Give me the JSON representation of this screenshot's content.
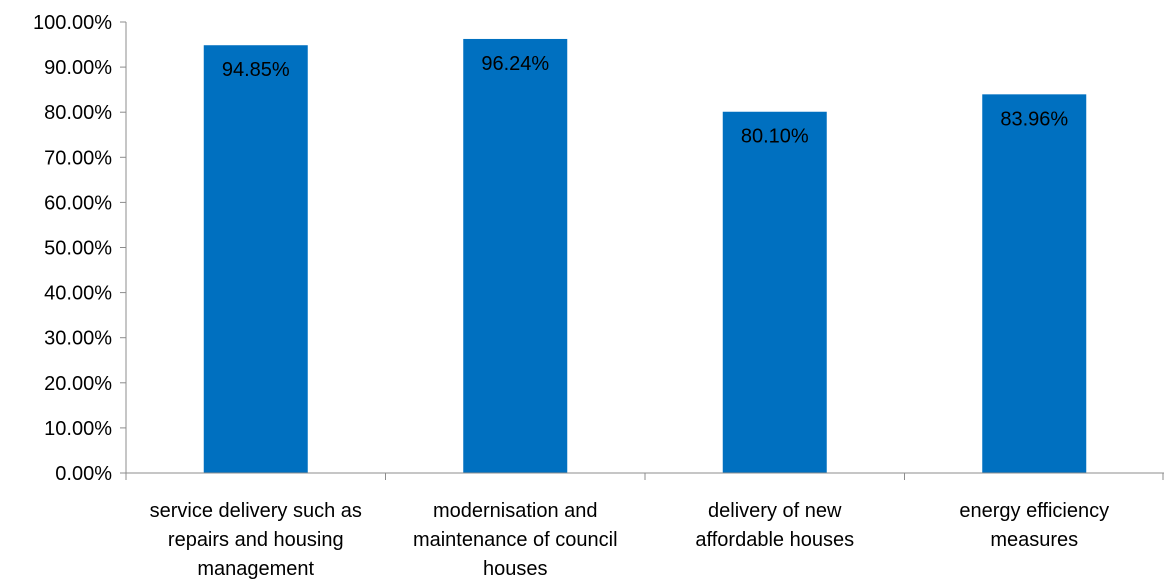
{
  "chart_data": {
    "type": "bar",
    "categories": [
      [
        "service delivery such as",
        "repairs and housing",
        "management"
      ],
      [
        "modernisation and",
        "maintenance of council",
        "houses"
      ],
      [
        "delivery of new",
        "affordable houses"
      ],
      [
        "energy efficiency",
        "measures"
      ]
    ],
    "values": [
      94.85,
      96.24,
      80.1,
      83.96
    ],
    "data_labels": [
      "94.85%",
      "96.24%",
      "80.10%",
      "83.96%"
    ],
    "y_ticks": [
      0,
      10,
      20,
      30,
      40,
      50,
      60,
      70,
      80,
      90,
      100
    ],
    "y_tick_labels": [
      "0.00%",
      "10.00%",
      "20.00%",
      "30.00%",
      "40.00%",
      "50.00%",
      "60.00%",
      "70.00%",
      "80.00%",
      "90.00%",
      "100.00%"
    ],
    "ylim": [
      0,
      100
    ],
    "title": "",
    "xlabel": "",
    "ylabel": "",
    "grid": false,
    "bar_color": "#0070C0",
    "axis_color": "#8C8C8C"
  }
}
